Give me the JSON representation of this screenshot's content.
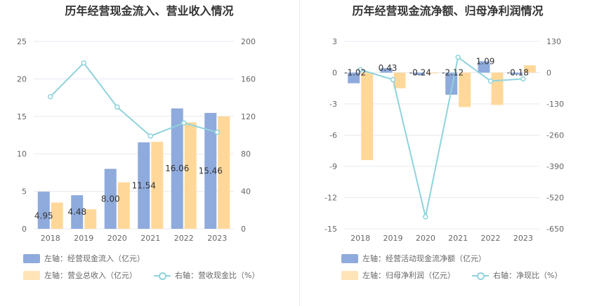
{
  "colors": {
    "bar1": "#8faadc",
    "bar2": "#ffd899",
    "line": "#8fd3dc",
    "grid": "#e6e9f0"
  },
  "left": {
    "title": "历年经营现金流入、营业收入情况",
    "legend": {
      "bar1": "左轴：经营现金流入（亿元）",
      "bar2": "左轴：营业总收入（亿元）",
      "line": "右轴：营收现金比（%）"
    }
  },
  "right": {
    "title": "历年经营现金流净额、归母净利润情况",
    "legend": {
      "bar1": "左轴：经营活动现金流净额（亿元）",
      "bar2": "左轴：归母净利润（亿元）",
      "line": "右轴：净现比（%）"
    }
  },
  "chart_data": [
    {
      "type": "bar",
      "title": "历年经营现金流入、营业收入情况",
      "categories": [
        "2018",
        "2019",
        "2020",
        "2021",
        "2022",
        "2023"
      ],
      "series": [
        {
          "name": "经营现金流入（亿元）",
          "axis": "left",
          "values": [
            4.95,
            4.48,
            8.0,
            11.54,
            16.06,
            15.46
          ],
          "labels": [
            "4.95",
            "4.48",
            "8.00",
            "11.54",
            "16.06",
            "15.46"
          ]
        },
        {
          "name": "营业总收入（亿元）",
          "axis": "left",
          "values": [
            3.5,
            2.6,
            6.2,
            11.6,
            14.2,
            15.0
          ]
        },
        {
          "name": "营收现金比（%）",
          "axis": "right",
          "type": "line",
          "values": [
            141,
            177,
            130,
            99,
            113,
            103
          ]
        }
      ],
      "ylim_left": [
        0,
        25
      ],
      "yticks_left": [
        0,
        5,
        10,
        15,
        20,
        25
      ],
      "ylim_right": [
        0,
        200
      ],
      "yticks_right": [
        0,
        40,
        80,
        120,
        160,
        200
      ],
      "grid": true,
      "legend": "bottom-left"
    },
    {
      "type": "bar",
      "title": "历年经营现金流净额、归母净利润情况",
      "categories": [
        "2018",
        "2019",
        "2020",
        "2021",
        "2022",
        "2023"
      ],
      "series": [
        {
          "name": "经营活动现金流净额（亿元）",
          "axis": "left",
          "values": [
            -1.02,
            0.43,
            -0.24,
            -2.12,
            1.09,
            -0.18
          ],
          "labels": [
            "-1.02",
            "0.43",
            "-0.24",
            "-2.12",
            "1.09",
            "-0.18"
          ]
        },
        {
          "name": "归母净利润（亿元）",
          "axis": "left",
          "values": [
            -8.4,
            -1.5,
            -0.05,
            -3.3,
            -3.1,
            0.7
          ]
        },
        {
          "name": "净现比（%）",
          "axis": "right",
          "type": "line",
          "values": [
            12,
            -29,
            -600,
            64,
            -35,
            -26
          ]
        }
      ],
      "ylim_left": [
        -15,
        3
      ],
      "yticks_left": [
        -15,
        -12,
        -9,
        -6,
        -3,
        0,
        3
      ],
      "ylim_right": [
        -650,
        130
      ],
      "yticks_right": [
        -650,
        -520,
        -390,
        -260,
        -130,
        0,
        130
      ],
      "grid": true,
      "legend": "bottom-left"
    }
  ]
}
